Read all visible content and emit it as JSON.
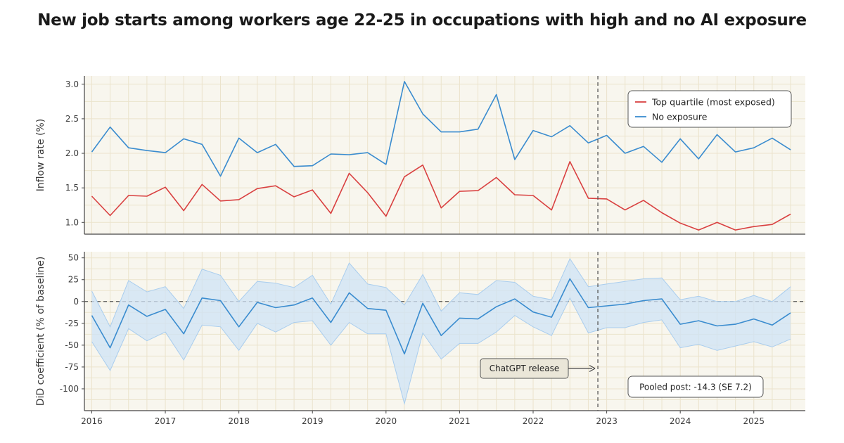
{
  "title": "New job starts among workers age 22-25 in occupations with high and no AI exposure",
  "colors": {
    "red": "#d94040",
    "blue": "#3a8ccf",
    "band": "#cfe3f6",
    "panel_bg": "#f8f6ee",
    "grid": "#ebe3cc"
  },
  "chart_data": [
    {
      "type": "line",
      "ylabel": "Inflow rate (%)",
      "ylim": [
        0.83,
        3.12
      ],
      "yticks": [
        1.0,
        1.5,
        2.0,
        2.5,
        3.0
      ],
      "ytick_labels": [
        "1.0",
        "1.5",
        "2.0",
        "2.5",
        "3.0"
      ],
      "grid": true,
      "legend": "top-right",
      "x": [
        2016.0,
        2016.25,
        2016.5,
        2016.75,
        2017.0,
        2017.25,
        2017.5,
        2017.75,
        2018.0,
        2018.25,
        2018.5,
        2018.75,
        2019.0,
        2019.25,
        2019.5,
        2019.75,
        2020.0,
        2020.25,
        2020.5,
        2020.75,
        2021.0,
        2021.25,
        2021.5,
        2021.75,
        2022.0,
        2022.25,
        2022.5,
        2022.75,
        2023.0,
        2023.25,
        2023.5,
        2023.75,
        2024.0,
        2024.25,
        2024.5,
        2024.75,
        2025.0,
        2025.25,
        2025.5
      ],
      "series": [
        {
          "name": "Top quartile (most exposed)",
          "color": "#d94040",
          "values": [
            1.38,
            1.1,
            1.39,
            1.38,
            1.51,
            1.17,
            1.55,
            1.31,
            1.33,
            1.49,
            1.53,
            1.37,
            1.47,
            1.13,
            1.71,
            1.43,
            1.09,
            1.66,
            1.83,
            1.21,
            1.45,
            1.46,
            1.65,
            1.4,
            1.39,
            1.18,
            1.88,
            1.35,
            1.34,
            1.18,
            1.32,
            1.14,
            0.99,
            0.89,
            1.0,
            0.89,
            0.94,
            0.97,
            1.12
          ]
        },
        {
          "name": "No exposure",
          "color": "#3a8ccf",
          "values": [
            2.02,
            2.38,
            2.08,
            2.04,
            2.01,
            2.21,
            2.13,
            1.67,
            2.22,
            2.01,
            2.13,
            1.81,
            1.82,
            1.99,
            1.98,
            2.01,
            1.84,
            3.04,
            2.57,
            2.31,
            2.31,
            2.35,
            2.85,
            1.91,
            2.33,
            2.24,
            2.4,
            2.15,
            2.26,
            2.0,
            2.1,
            1.87,
            2.21,
            1.92,
            2.27,
            2.02,
            2.08,
            2.22,
            2.05
          ]
        }
      ]
    },
    {
      "type": "line",
      "ylabel": "DiD coefficient (% of baseline)",
      "ylim": [
        -125,
        57
      ],
      "yticks": [
        50,
        25,
        0,
        -25,
        -50,
        -75,
        -100
      ],
      "ytick_labels": [
        "50",
        "25",
        "0",
        "-25",
        "-50",
        "-75",
        "-100"
      ],
      "grid": true,
      "zero_line": true,
      "x": [
        2016.0,
        2016.25,
        2016.5,
        2016.75,
        2017.0,
        2017.25,
        2017.5,
        2017.75,
        2018.0,
        2018.25,
        2018.5,
        2018.75,
        2019.0,
        2019.25,
        2019.5,
        2019.75,
        2020.0,
        2020.25,
        2020.5,
        2020.75,
        2021.0,
        2021.25,
        2021.5,
        2021.75,
        2022.0,
        2022.25,
        2022.5,
        2022.75,
        2023.0,
        2023.25,
        2023.5,
        2023.75,
        2024.0,
        2024.25,
        2024.5,
        2024.75,
        2025.0,
        2025.25,
        2025.5
      ],
      "series": [
        {
          "color": "#3a8ccf",
          "values": [
            -16,
            -53,
            -4,
            -17,
            -9,
            -37,
            4,
            1,
            -29,
            -1,
            -7,
            -4,
            4,
            -24,
            10,
            -8,
            -10,
            -60,
            -2,
            -39,
            -19,
            -20,
            -6,
            3,
            -12,
            -18,
            26,
            -7,
            -5,
            -3,
            1,
            3,
            -26,
            -22,
            -28,
            -26,
            -20,
            -27,
            -13
          ],
          "upper": [
            12,
            -29,
            24,
            11,
            17,
            -8,
            37,
            30,
            0,
            23,
            21,
            16,
            30,
            -3,
            44,
            20,
            16,
            -4,
            31,
            -11,
            10,
            8,
            24,
            22,
            6,
            2,
            49,
            17,
            20,
            23,
            26,
            27,
            2,
            6,
            0,
            0,
            7,
            0,
            17
          ],
          "lower": [
            -46,
            -79,
            -31,
            -45,
            -35,
            -67,
            -27,
            -29,
            -56,
            -25,
            -35,
            -24,
            -22,
            -50,
            -24,
            -37,
            -37,
            -117,
            -36,
            -66,
            -48,
            -48,
            -35,
            -16,
            -29,
            -39,
            4,
            -36,
            -30,
            -30,
            -24,
            -21,
            -53,
            -49,
            -56,
            -51,
            -46,
            -52,
            -43
          ]
        }
      ]
    }
  ],
  "x_axis": {
    "ticks": [
      2016,
      2017,
      2018,
      2019,
      2020,
      2021,
      2022,
      2023,
      2024,
      2025
    ],
    "tick_labels": [
      "2016",
      "2017",
      "2018",
      "2019",
      "2020",
      "2021",
      "2022",
      "2023",
      "2024",
      "2025"
    ],
    "xlim": [
      2015.9,
      2025.7
    ]
  },
  "event": {
    "x": 2022.88,
    "label": "ChatGPT release"
  },
  "pooled": {
    "label": "Pooled post: -14.3 (SE 7.2)"
  }
}
